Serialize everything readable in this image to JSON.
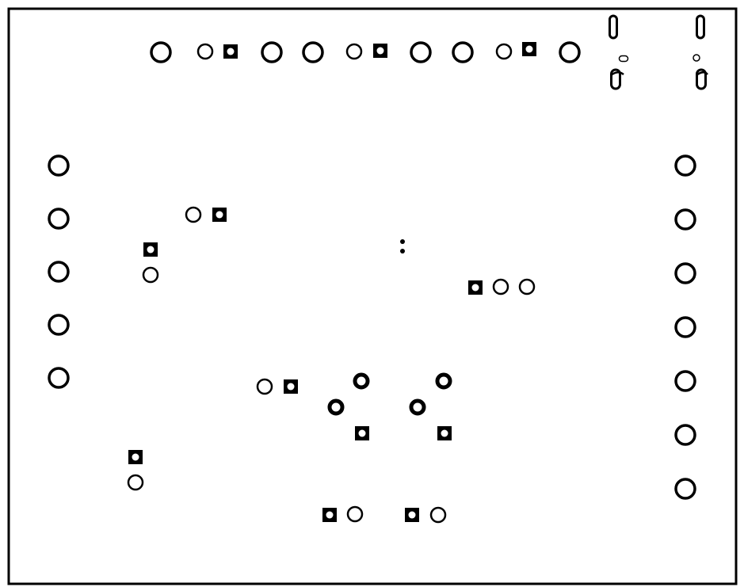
{
  "colors": {
    "background": "#ffffff",
    "copper": "#000000",
    "drill": "#ffffff"
  },
  "pad_shapes": [
    "round",
    "square",
    "oblong"
  ]
}
